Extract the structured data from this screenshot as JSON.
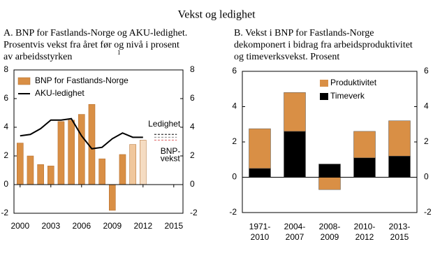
{
  "title": "Vekst og ledighet",
  "chart_data": [
    {
      "type": "bar_line",
      "title_lines": [
        "A.  BNP for Fastlands-Norge og AKU-ledighet.",
        "Prosentvis vekst fra året før og nivå i prosent",
        "av arbeidsstyrken"
      ],
      "title_note": "1",
      "x": [
        2000,
        2001,
        2002,
        2003,
        2004,
        2005,
        2006,
        2007,
        2008,
        2009,
        2010,
        2011,
        2012
      ],
      "series": [
        {
          "name": "BNP for Fastlands-Norge",
          "kind": "bar",
          "color": "#d98f45",
          "colors": [
            "#d98f45",
            "#d98f45",
            "#d98f45",
            "#d98f45",
            "#d98f45",
            "#d98f45",
            "#d98f45",
            "#d98f45",
            "#d98f45",
            "#d98f45",
            "#d98f45",
            "#f0c79c",
            "#f5dcc2"
          ],
          "values": [
            2.9,
            2.0,
            1.4,
            1.3,
            4.4,
            4.5,
            4.9,
            5.6,
            1.8,
            -1.8,
            2.1,
            2.8,
            3.1
          ]
        },
        {
          "name": "AKU-ledighet",
          "kind": "line",
          "color": "#000000",
          "values": [
            3.4,
            3.5,
            3.9,
            4.5,
            4.5,
            4.6,
            3.4,
            2.5,
            2.6,
            3.2,
            3.6,
            3.3,
            3.3
          ]
        }
      ],
      "reference_lines": [
        {
          "value": 3.5,
          "color": "#333333"
        },
        {
          "value": 3.3,
          "color": "#999999"
        },
        {
          "value": 3.1,
          "color": "#e07070"
        }
      ],
      "annotations": [
        {
          "text": "Ledighet",
          "x": 2012.5,
          "y": 4.2
        },
        {
          "text": "BNP-",
          "x": 2013.7,
          "y": 2.3
        },
        {
          "text": "vekst",
          "x": 2013.7,
          "y": 1.8
        }
      ],
      "xlim": [
        1999.4,
        2015.9
      ],
      "xticks": [
        2000,
        2003,
        2006,
        2009,
        2012,
        2015
      ],
      "ylim": [
        -2,
        8
      ],
      "yticks": [
        -2,
        0,
        2,
        4,
        6,
        8
      ],
      "y2lim": [
        -2,
        8
      ],
      "y2ticks": [
        -2,
        0,
        2,
        4,
        6,
        8
      ]
    },
    {
      "type": "stacked_bar",
      "title_lines": [
        "B.  Vekst i  BNP for Fastlands-Norge",
        "dekomponert i bidrag fra arbeidsproduktivitet",
        "og timeverksvekst. Prosent"
      ],
      "categories": [
        [
          "1971-",
          "2010"
        ],
        [
          "2004-",
          "2007"
        ],
        [
          "2008-",
          "2009"
        ],
        [
          "2010-",
          "2012"
        ],
        [
          "2013-",
          "2015"
        ]
      ],
      "series": [
        {
          "name": "Timeverk",
          "color": "#000000",
          "values": [
            0.5,
            2.6,
            0.75,
            1.1,
            1.2
          ]
        },
        {
          "name": "Produktivitet",
          "color": "#d98f45",
          "values": [
            2.25,
            2.2,
            -0.7,
            1.5,
            2.0
          ]
        }
      ],
      "ylim": [
        -2,
        6
      ],
      "yticks": [
        -2,
        0,
        2,
        4,
        6
      ],
      "y2lim": [
        -2,
        6
      ],
      "y2ticks": [
        -2,
        0,
        2,
        4,
        6
      ]
    }
  ]
}
